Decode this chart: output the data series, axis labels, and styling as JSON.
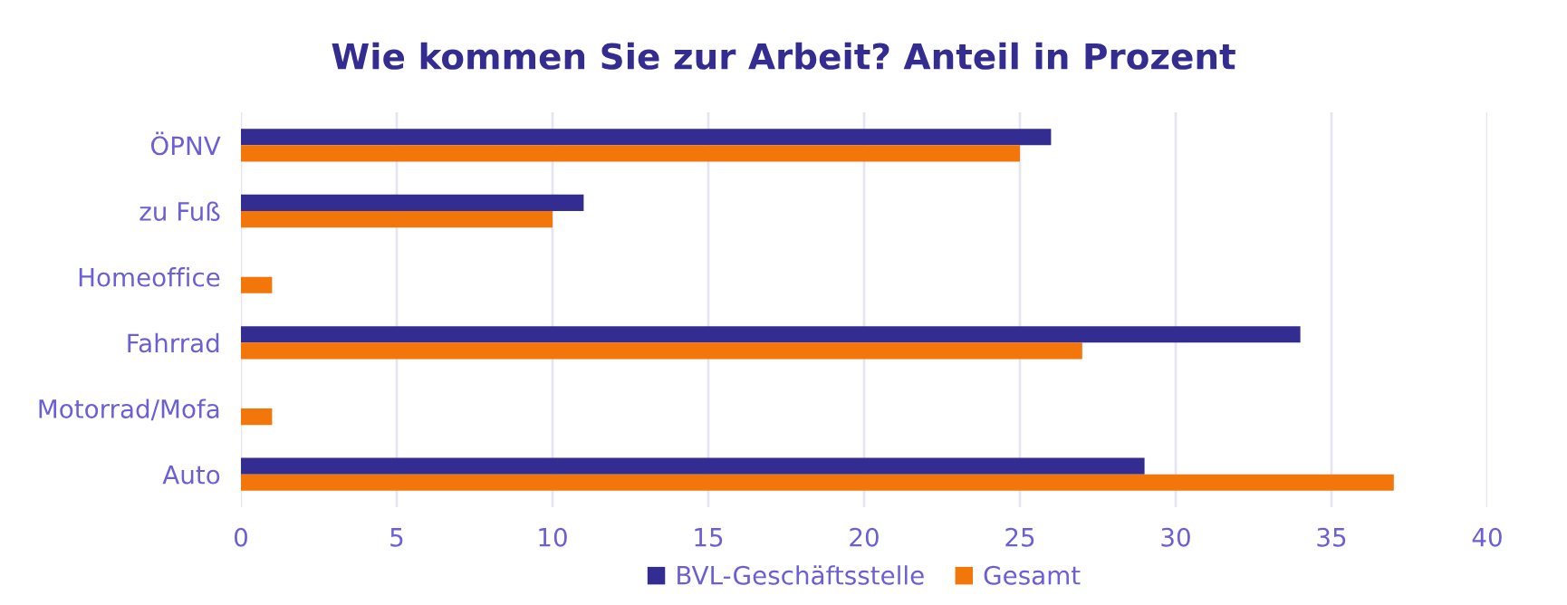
{
  "chart_data": {
    "type": "bar",
    "orientation": "horizontal",
    "title": "Wie kommen Sie zur Arbeit? Anteil in Prozent",
    "categories": [
      "ÖPNV",
      "zu Fuß",
      "Homeoffice",
      "Fahrrad",
      "Motorrad/Mofa",
      "Auto"
    ],
    "series": [
      {
        "name": "BVL-Geschäftsstelle",
        "color": "#332c91",
        "values": [
          26,
          11,
          0,
          34,
          0,
          29
        ]
      },
      {
        "name": "Gesamt",
        "color": "#f2760a",
        "values": [
          25,
          10,
          1,
          27,
          1,
          37
        ]
      }
    ],
    "xlim": [
      0,
      40
    ],
    "xticks": [
      0,
      5,
      10,
      15,
      20,
      25,
      30,
      35,
      40
    ],
    "grid": "x",
    "legend": "bottom"
  }
}
